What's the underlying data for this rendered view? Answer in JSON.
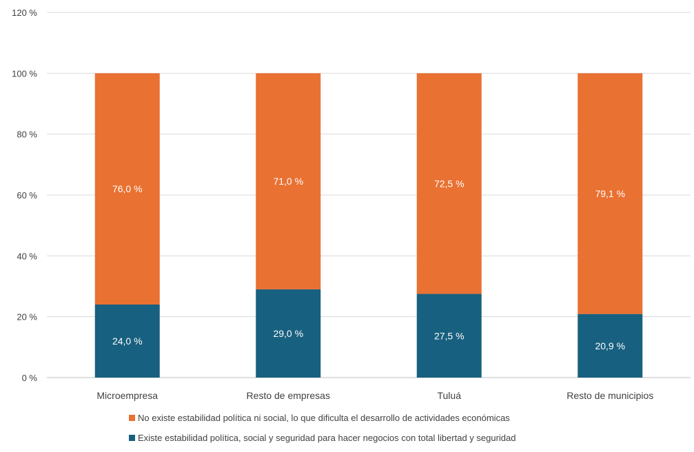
{
  "chart_data": {
    "type": "bar",
    "stacked": true,
    "categories": [
      "Microempresa",
      "Resto de empresas",
      "Tuluá",
      "Resto de municipios"
    ],
    "series": [
      {
        "name": "Existe estabilidad política, social y seguridad para hacer negocios con total libertad y seguridad",
        "color": "#18607f",
        "values": [
          24.0,
          29.0,
          27.5,
          20.9
        ],
        "labels": [
          "24,0 %",
          "29,0 %",
          "27,5 %",
          "20,9 %"
        ]
      },
      {
        "name": "No existe estabilidad política ni social, lo que dificulta el desarrollo de actividades económicas",
        "color": "#e97132",
        "values": [
          76.0,
          71.0,
          72.5,
          79.1
        ],
        "labels": [
          "76,0 %",
          "71,0 %",
          "72,5 %",
          "79,1 %"
        ]
      }
    ],
    "ylim": [
      0,
      120
    ],
    "yticks": [
      "0 %",
      "20 %",
      "40 %",
      "60 %",
      "80 %",
      "100 %",
      "120 %"
    ],
    "grid": true,
    "legend_position": "bottom",
    "legend_order": [
      1,
      0
    ]
  }
}
